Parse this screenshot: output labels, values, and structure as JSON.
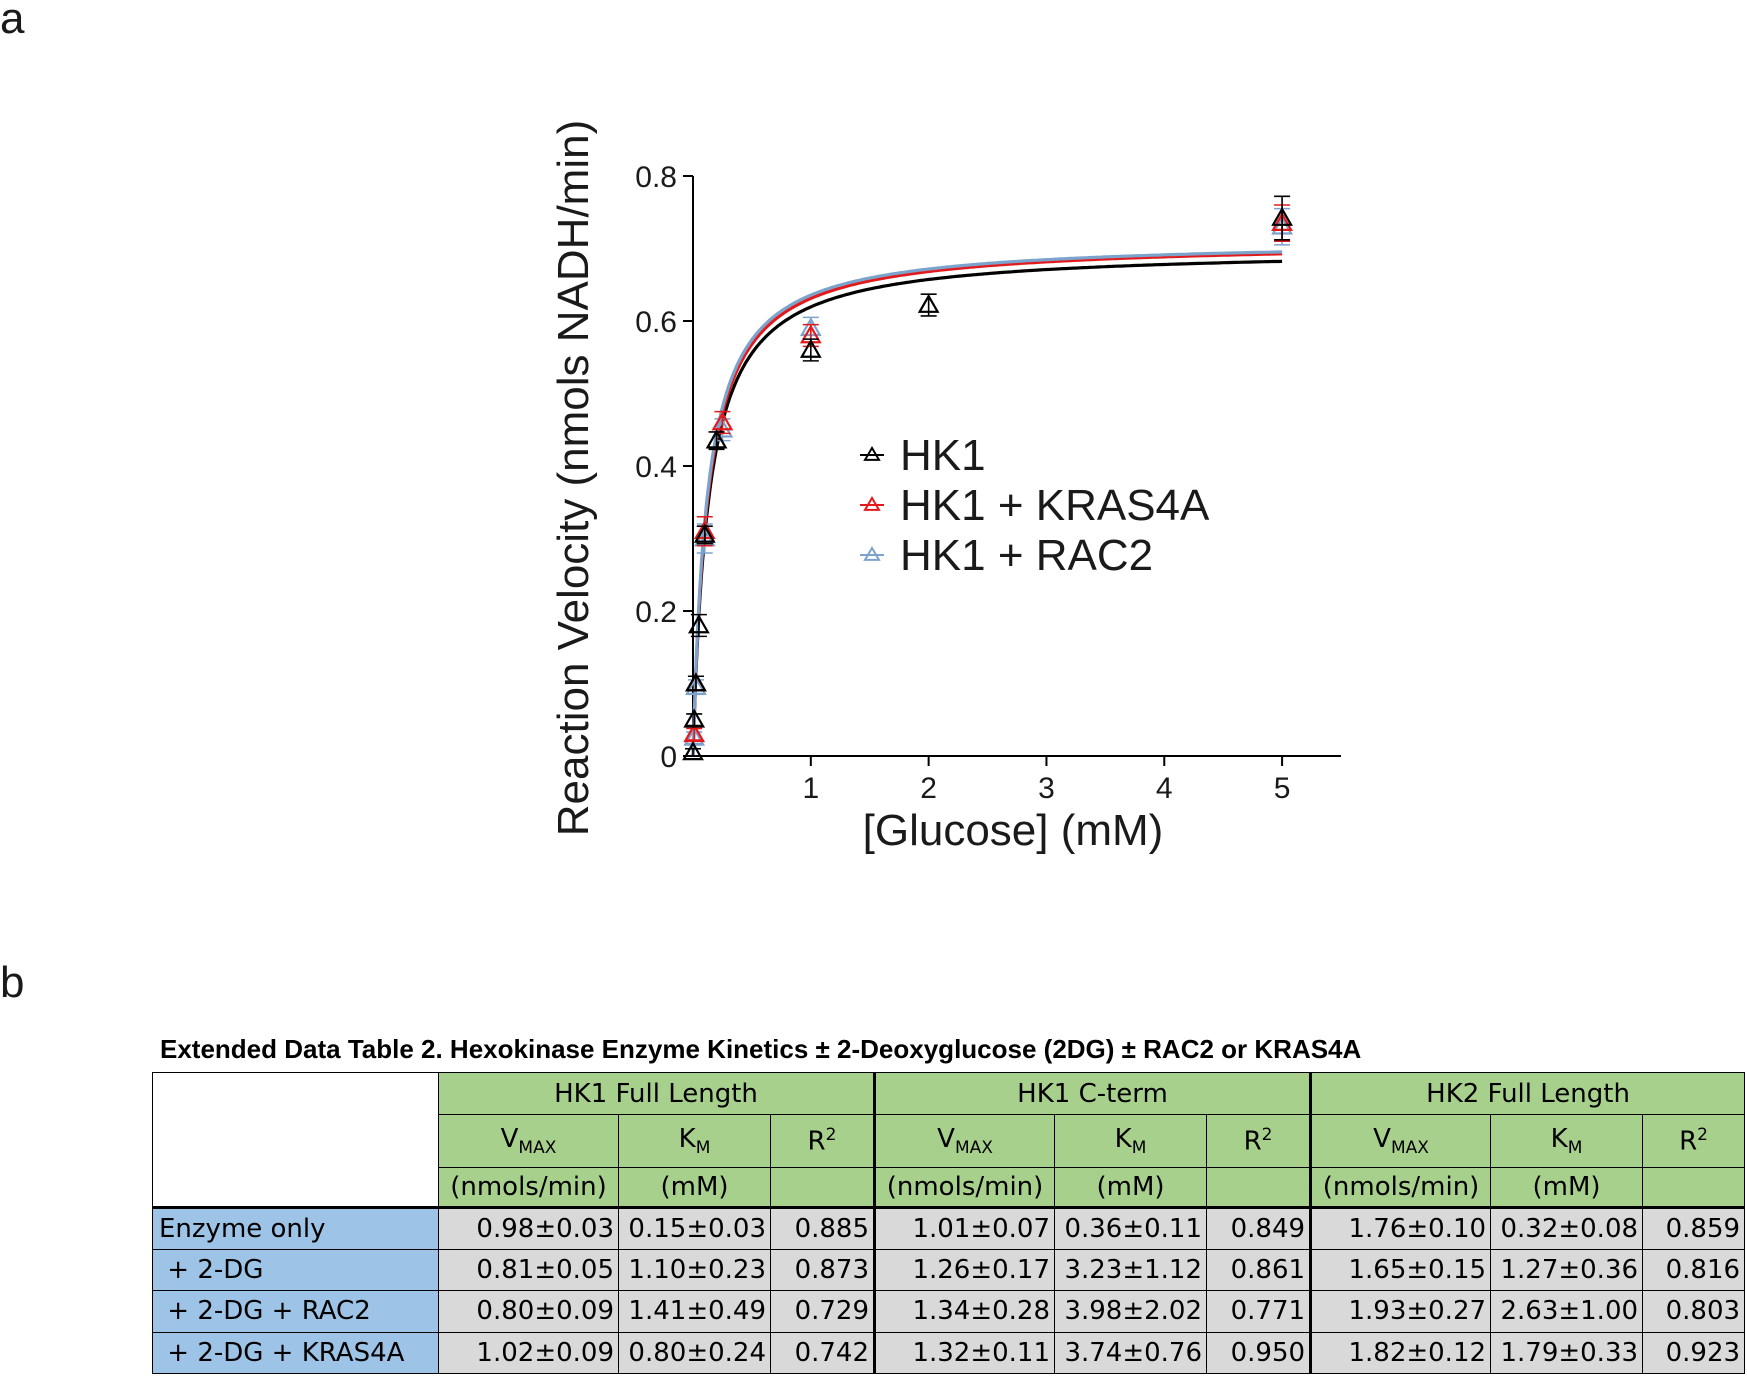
{
  "panels": {
    "a": "a",
    "b": "b"
  },
  "colors": {
    "hk1": "#000000",
    "hk1_kras4a": "#e31a1c",
    "hk1_rac2": "#7ba3cc",
    "header_green": "#a8d08d",
    "row_blue": "#9dc3e6",
    "cell_gray": "#d9d9d9"
  },
  "chart_data": {
    "type": "scatter",
    "title": "",
    "xlabel": "[Glucose]  (mM)",
    "ylabel": "Reaction Velocity (nmols NADH/min)",
    "xlim": [
      0,
      5.5
    ],
    "ylim": [
      0,
      0.8
    ],
    "xticks": [
      1,
      2,
      3,
      4,
      5
    ],
    "yticks": [
      0,
      0.2,
      0.4,
      0.6,
      0.8
    ],
    "ytick_labels": [
      "0",
      "0.2",
      "0.4",
      "0.6",
      "0.8"
    ],
    "legend_position": "center-right",
    "grid": false,
    "series": [
      {
        "name": "HK1",
        "color": "#000000",
        "x": [
          0,
          0.01,
          0.025,
          0.05,
          0.1,
          0.2,
          1,
          2,
          5
        ],
        "y": [
          0.005,
          0.05,
          0.1,
          0.18,
          0.305,
          0.435,
          0.56,
          0.622,
          0.742
        ],
        "err": [
          0.005,
          0.008,
          0.01,
          0.015,
          0.012,
          0.012,
          0.015,
          0.015,
          0.03
        ],
        "fit": {
          "vmax": 0.7,
          "km": 0.13
        }
      },
      {
        "name": "HK1 + KRAS4A",
        "color": "#e31a1c",
        "x": [
          0.01,
          0.025,
          0.1,
          0.25,
          1,
          5
        ],
        "y": [
          0.03,
          0.1,
          0.31,
          0.46,
          0.58,
          0.735
        ],
        "err": [
          0.008,
          0.01,
          0.02,
          0.015,
          0.015,
          0.025
        ],
        "fit": {
          "vmax": 0.71,
          "km": 0.125
        }
      },
      {
        "name": "HK1 + RAC2",
        "color": "#7ba3cc",
        "x": [
          0.01,
          0.025,
          0.1,
          0.25,
          1,
          5
        ],
        "y": [
          0.025,
          0.095,
          0.3,
          0.45,
          0.59,
          0.73
        ],
        "err": [
          0.008,
          0.01,
          0.02,
          0.015,
          0.015,
          0.025
        ],
        "fit": {
          "vmax": 0.712,
          "km": 0.12
        }
      }
    ]
  },
  "table": {
    "title": "Extended Data Table 2.  Hexokinase Enzyme Kinetics ± 2-Deoxyglucose (2DG) ± RAC2 or KRAS4A",
    "groups": [
      "HK1 Full Length",
      "HK1 C-term",
      "HK2 Full Length"
    ],
    "param_main": {
      "v": "V",
      "k": "K",
      "r": "R"
    },
    "param_sub": {
      "v": "MAX",
      "k": "M",
      "r": "2"
    },
    "units": [
      "(nmols/min)",
      "(mM)",
      ""
    ],
    "rows": [
      {
        "label": "Enzyme only",
        "values": [
          "0.98±0.03",
          "0.15±0.03",
          "0.885",
          "1.01±0.07",
          "0.36±0.11",
          "0.849",
          "1.76±0.10",
          "0.32±0.08",
          "0.859"
        ]
      },
      {
        "label": " + 2-DG",
        "values": [
          "0.81±0.05",
          "1.10±0.23",
          "0.873",
          "1.26±0.17",
          "3.23±1.12",
          "0.861",
          "1.65±0.15",
          "1.27±0.36",
          "0.816"
        ]
      },
      {
        "label": " + 2-DG + RAC2",
        "values": [
          "0.80±0.09",
          "1.41±0.49",
          "0.729",
          "1.34±0.28",
          "3.98±2.02",
          "0.771",
          "1.93±0.27",
          "2.63±1.00",
          "0.803"
        ]
      },
      {
        "label": " + 2-DG + KRAS4A",
        "values": [
          "1.02±0.09",
          "0.80±0.24",
          "0.742",
          "1.32±0.11",
          "3.74±0.76",
          "0.950",
          "1.82±0.12",
          "1.79±0.33",
          "0.923"
        ]
      }
    ]
  }
}
